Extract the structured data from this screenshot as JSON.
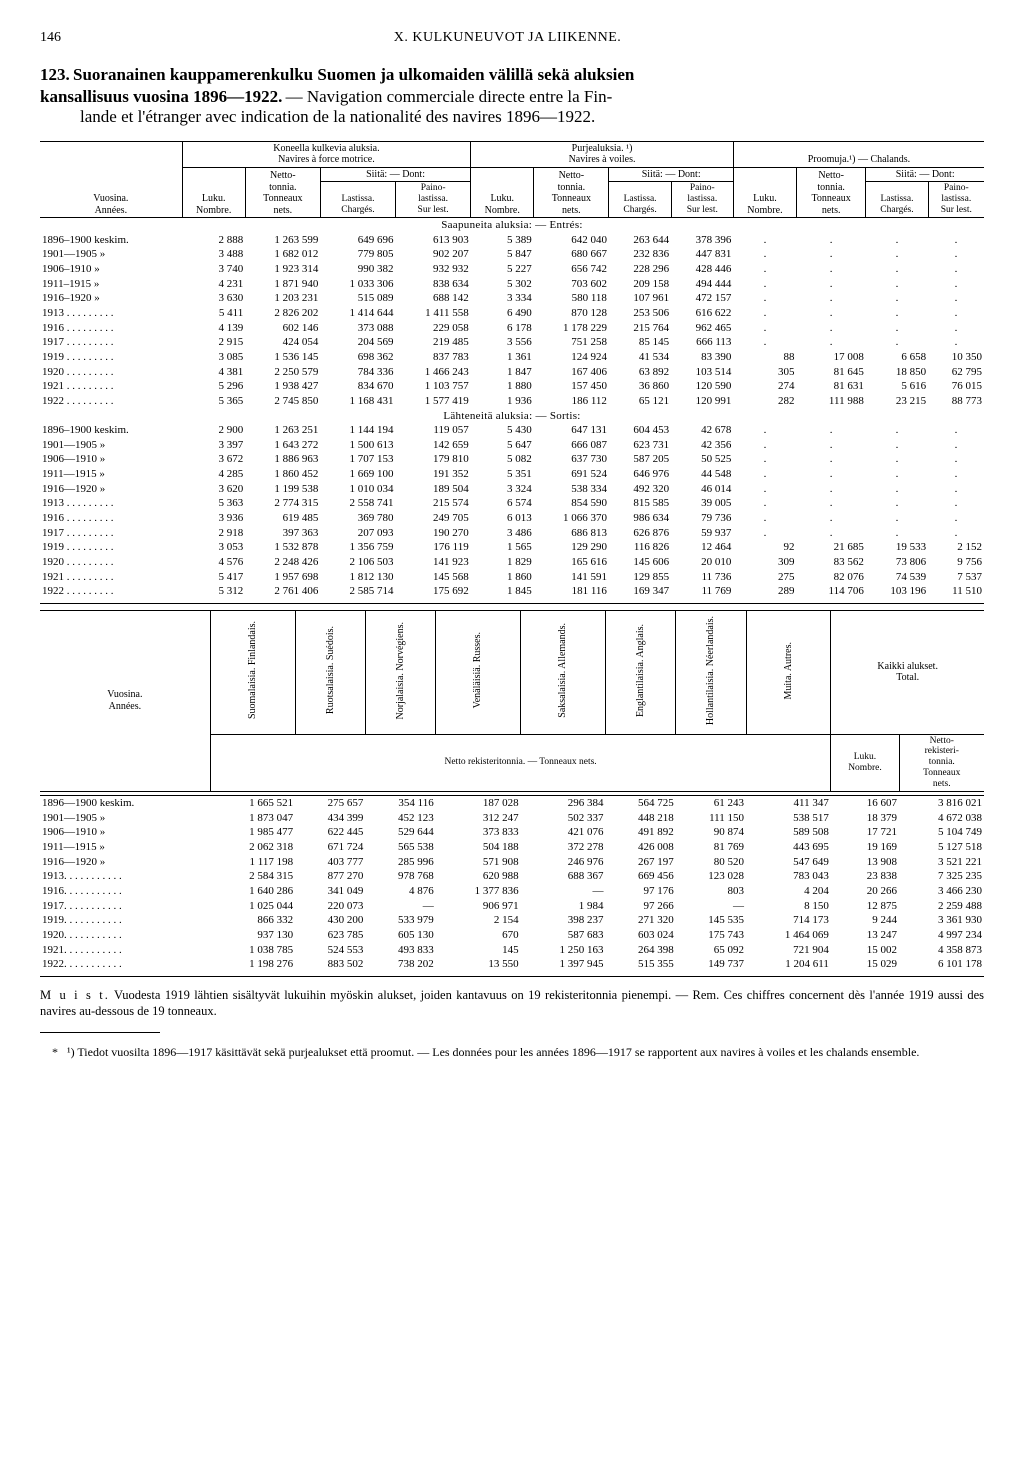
{
  "page": {
    "number": "146",
    "chapter": "X. KULKUNEUVOT JA LIIKENNE."
  },
  "title": {
    "num": "123.",
    "fi1": "Suoranainen kauppamerenkulku Suomen ja ulkomaiden välillä sekä aluksien",
    "fi2": "kansallisuus vuosina 1896—1922.",
    "fr1": "— Navigation commerciale directe entre la Fin-",
    "fr2": "lande et l'étranger avec indication de la nationalité des navires 1896—1922."
  },
  "t1": {
    "head": {
      "grp1": "Koneella kulkevia aluksia.\nNavires à force motrice.",
      "grp2": "Purjealuksia. ¹)\nNavires à voiles.",
      "grp3": "Proomuja.¹) — Chalands.",
      "years": "Vuosina.\nAnnées.",
      "luku": "Luku.\nNombre.",
      "netto": "Netto-\ntonnia.\nTonneaux\nnets.",
      "siita": "Siitä: — Dont:",
      "lastissa": "Lastissa.\nChargés.",
      "paino": "Paino-\nlastissa.\nSur lest."
    },
    "sec1": "Saapuneita aluksia: — Entrés:",
    "sec2": "Lähteneitä aluksia: — Sortis:",
    "rows_in": [
      {
        "y": "1896–1900 keskim.",
        "d": [
          "2 888",
          "1 263 599",
          "649 696",
          "613 903",
          "5 389",
          "642 040",
          "263 644",
          "378 396",
          ".",
          ".",
          ".",
          "."
        ]
      },
      {
        "y": "1901—1905    »",
        "d": [
          "3 488",
          "1 682 012",
          "779 805",
          "902 207",
          "5 847",
          "680 667",
          "232 836",
          "447 831",
          ".",
          ".",
          ".",
          "."
        ]
      },
      {
        "y": "1906–1910    »",
        "d": [
          "3 740",
          "1 923 314",
          "990 382",
          "932 932",
          "5 227",
          "656 742",
          "228 296",
          "428 446",
          ".",
          ".",
          ".",
          "."
        ]
      },
      {
        "y": "1911–1915    »",
        "d": [
          "4 231",
          "1 871 940",
          "1 033 306",
          "838 634",
          "5 302",
          "703 602",
          "209 158",
          "494 444",
          ".",
          ".",
          ".",
          "."
        ]
      },
      {
        "y": "1916–1920    »",
        "d": [
          "3 630",
          "1 203 231",
          "515 089",
          "688 142",
          "3 334",
          "580 118",
          "107 961",
          "472 157",
          ".",
          ".",
          ".",
          "."
        ]
      },
      {
        "y": "1913  . . . . . . . . .",
        "d": [
          "5 411",
          "2 826 202",
          "1 414 644",
          "1 411 558",
          "6 490",
          "870 128",
          "253 506",
          "616 622",
          ".",
          ".",
          ".",
          "."
        ]
      },
      {
        "y": "1916  . . . . . . . . .",
        "d": [
          "4 139",
          "602 146",
          "373 088",
          "229 058",
          "6 178",
          "1 178 229",
          "215 764",
          "962 465",
          ".",
          ".",
          ".",
          "."
        ]
      },
      {
        "y": "1917  . . . . . . . . .",
        "d": [
          "2 915",
          "424 054",
          "204 569",
          "219 485",
          "3 556",
          "751 258",
          "85 145",
          "666 113",
          ".",
          ".",
          ".",
          "."
        ]
      },
      {
        "y": "1919  . . . . . . . . .",
        "d": [
          "3 085",
          "1 536 145",
          "698 362",
          "837 783",
          "1 361",
          "124 924",
          "41 534",
          "83 390",
          "88",
          "17 008",
          "6 658",
          "10 350"
        ]
      },
      {
        "y": "1920  . . . . . . . . .",
        "d": [
          "4 381",
          "2 250 579",
          "784 336",
          "1 466 243",
          "1 847",
          "167 406",
          "63 892",
          "103 514",
          "305",
          "81 645",
          "18 850",
          "62 795"
        ]
      },
      {
        "y": "1921  . . . . . . . . .",
        "d": [
          "5 296",
          "1 938 427",
          "834 670",
          "1 103 757",
          "1 880",
          "157 450",
          "36 860",
          "120 590",
          "274",
          "81 631",
          "5 616",
          "76 015"
        ]
      },
      {
        "y": "1922  . . . . . . . . .",
        "d": [
          "5 365",
          "2 745 850",
          "1 168 431",
          "1 577 419",
          "1 936",
          "186 112",
          "65 121",
          "120 991",
          "282",
          "111 988",
          "23 215",
          "88 773"
        ]
      }
    ],
    "rows_out": [
      {
        "y": "1896–1900 keskim.",
        "d": [
          "2 900",
          "1 263 251",
          "1 144 194",
          "119 057",
          "5 430",
          "647 131",
          "604 453",
          "42 678",
          ".",
          ".",
          ".",
          "."
        ]
      },
      {
        "y": "1901—1905    »",
        "d": [
          "3 397",
          "1 643 272",
          "1 500 613",
          "142 659",
          "5 647",
          "666 087",
          "623 731",
          "42 356",
          ".",
          ".",
          ".",
          "."
        ]
      },
      {
        "y": "1906—1910    »",
        "d": [
          "3 672",
          "1 886 963",
          "1 707 153",
          "179 810",
          "5 082",
          "637 730",
          "587 205",
          "50 525",
          ".",
          ".",
          ".",
          "."
        ]
      },
      {
        "y": "1911—1915    »",
        "d": [
          "4 285",
          "1 860 452",
          "1 669 100",
          "191 352",
          "5 351",
          "691 524",
          "646 976",
          "44 548",
          ".",
          ".",
          ".",
          "."
        ]
      },
      {
        "y": "1916—1920    »",
        "d": [
          "3 620",
          "1 199 538",
          "1 010 034",
          "189 504",
          "3 324",
          "538 334",
          "492 320",
          "46 014",
          ".",
          ".",
          ".",
          "."
        ]
      },
      {
        "y": "1913  . . . . . . . . .",
        "d": [
          "5 363",
          "2 774 315",
          "2 558 741",
          "215 574",
          "6 574",
          "854 590",
          "815 585",
          "39 005",
          ".",
          ".",
          ".",
          "."
        ]
      },
      {
        "y": "1916  . . . . . . . . .",
        "d": [
          "3 936",
          "619 485",
          "369 780",
          "249 705",
          "6 013",
          "1 066 370",
          "986 634",
          "79 736",
          ".",
          ".",
          ".",
          "."
        ]
      },
      {
        "y": "1917  . . . . . . . . .",
        "d": [
          "2 918",
          "397 363",
          "207 093",
          "190 270",
          "3 486",
          "686 813",
          "626 876",
          "59 937",
          ".",
          ".",
          ".",
          "."
        ]
      },
      {
        "y": "1919  . . . . . . . . .",
        "d": [
          "3 053",
          "1 532 878",
          "1 356 759",
          "176 119",
          "1 565",
          "129 290",
          "116 826",
          "12 464",
          "92",
          "21 685",
          "19 533",
          "2 152"
        ]
      },
      {
        "y": "1920  . . . . . . . . .",
        "d": [
          "4 576",
          "2 248 426",
          "2 106 503",
          "141 923",
          "1 829",
          "165 616",
          "145 606",
          "20 010",
          "309",
          "83 562",
          "73 806",
          "9 756"
        ]
      },
      {
        "y": "1921  . . . . . . . . .",
        "d": [
          "5 417",
          "1 957 698",
          "1 812 130",
          "145 568",
          "1 860",
          "141 591",
          "129 855",
          "11 736",
          "275",
          "82 076",
          "74 539",
          "7 537"
        ]
      },
      {
        "y": "1922  . . . . . . . . .",
        "d": [
          "5 312",
          "2 761 406",
          "2 585 714",
          "175 692",
          "1 845",
          "181 116",
          "169 347",
          "11 769",
          "289",
          "114 706",
          "103 196",
          "11 510"
        ]
      }
    ]
  },
  "t2": {
    "head": {
      "years": "Vuosina.\nAnnées.",
      "cols": [
        "Suomalaisia.\nFinlandais.",
        "Ruotsalaisia.\nSuédois.",
        "Norjalaisia.\nNorvégiens.",
        "Venäläisiä.\nRusses.",
        "Saksalaisia.\nAllemands.",
        "Englantilaisia.\nAnglais.",
        "Hollantilaisia.\nNéerlandais.",
        "Muita.\nAutres."
      ],
      "total": "Kaikki alukset.\nTotal.",
      "luku": "Luku.\nNombre.",
      "netto": "Netto-\nrekisteri-\ntonnia.\nTonneaux\nnets.",
      "subline": "Netto rekisteritonnia. — Tonneaux nets."
    },
    "rows": [
      {
        "y": "1896—1900 keskim.",
        "d": [
          "1 665 521",
          "275 657",
          "354 116",
          "187 028",
          "296 384",
          "564 725",
          "61 243",
          "411 347",
          "16 607",
          "3 816 021"
        ]
      },
      {
        "y": "1901—1905    »",
        "d": [
          "1 873 047",
          "434 399",
          "452 123",
          "312 247",
          "502 337",
          "448 218",
          "111 150",
          "538 517",
          "18 379",
          "4 672 038"
        ]
      },
      {
        "y": "1906—1910    »",
        "d": [
          "1 985 477",
          "622 445",
          "529 644",
          "373 833",
          "421 076",
          "491 892",
          "90 874",
          "589 508",
          "17 721",
          "5 104 749"
        ]
      },
      {
        "y": "1911—1915    »",
        "d": [
          "2 062 318",
          "671 724",
          "565 538",
          "504 188",
          "372 278",
          "426 008",
          "81 769",
          "443 695",
          "19 169",
          "5 127 518"
        ]
      },
      {
        "y": "1916—1920    »",
        "d": [
          "1 117 198",
          "403 777",
          "285 996",
          "571 908",
          "246 976",
          "267 197",
          "80 520",
          "547 649",
          "13 908",
          "3 521 221"
        ]
      },
      {
        "y": "1913. . . . . . . . . . .",
        "d": [
          "2 584 315",
          "877 270",
          "978 768",
          "620 988",
          "688 367",
          "669 456",
          "123 028",
          "783 043",
          "23 838",
          "7 325 235"
        ]
      },
      {
        "y": "1916. . . . . . . . . . .",
        "d": [
          "1 640 286",
          "341 049",
          "4 876",
          "1 377 836",
          "—",
          "97 176",
          "803",
          "4 204",
          "20 266",
          "3 466 230"
        ]
      },
      {
        "y": "1917. . . . . . . . . . .",
        "d": [
          "1 025 044",
          "220 073",
          "—",
          "906 971",
          "1 984",
          "97 266",
          "—",
          "8 150",
          "12 875",
          "2 259 488"
        ]
      },
      {
        "y": "1919. . . . . . . . . . .",
        "d": [
          "866 332",
          "430 200",
          "533 979",
          "2 154",
          "398 237",
          "271 320",
          "145 535",
          "714 173",
          "9 244",
          "3 361 930"
        ]
      },
      {
        "y": "1920. . . . . . . . . . .",
        "d": [
          "937 130",
          "623 785",
          "605 130",
          "670",
          "587 683",
          "603 024",
          "175 743",
          "1 464 069",
          "13 247",
          "4 997 234"
        ]
      },
      {
        "y": "1921. . . . . . . . . . .",
        "d": [
          "1 038 785",
          "524 553",
          "493 833",
          "145",
          "1 250 163",
          "264 398",
          "65 092",
          "721 904",
          "15 002",
          "4 358 873"
        ]
      },
      {
        "y": "1922. . . . . . . . . . .",
        "d": [
          "1 198 276",
          "883 502",
          "738 202",
          "13 550",
          "1 397 945",
          "515 355",
          "149 737",
          "1 204 611",
          "15 029",
          "6 101 178"
        ]
      }
    ]
  },
  "note": {
    "label": "M u i s t.",
    "fi": "Vuodesta 1919 lähtien sisältyvät lukuihin myöskin alukset, joiden kantavuus on 19 rekisteritonnia pienempi. —",
    "rem": "Rem.",
    "fr": "Ces chiffres concernent dès l'année 1919 aussi des navires au-dessous de 19 tonneaux."
  },
  "footnote": {
    "mark": "¹)",
    "fi": "Tiedot vuosilta 1896—1917 käsittävät sekä purjealukset että proomut. —",
    "fr": "Les données pour les années 1896—1917 se rapportent aux navires à voiles et les chalands ensemble."
  }
}
